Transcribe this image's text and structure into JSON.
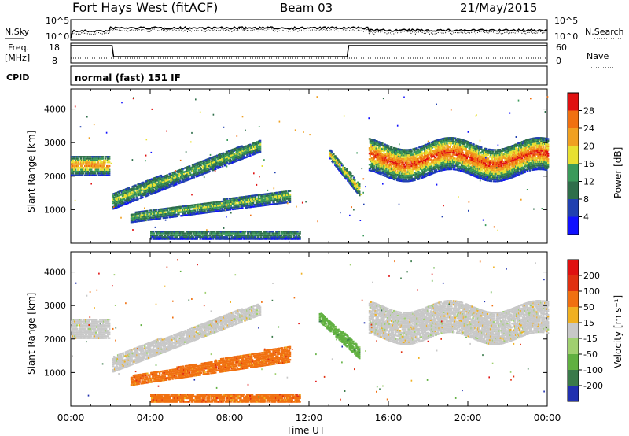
{
  "header": {
    "radar": "Fort Hays West (fitACF)",
    "beam": "Beam 03",
    "date": "21/May/2015"
  },
  "status_panel": {
    "left_top": "N.Sky",
    "left_mid_1": "Freq.",
    "left_mid_2": "[MHz]",
    "left_bottom": "CPID",
    "right_top": "N.Search",
    "right_mid": "Nave",
    "nsky_ticks": [
      "10^5",
      "10^0"
    ],
    "freq_ticks": [
      "18",
      "8"
    ],
    "nave_ticks": [
      "60",
      "0"
    ],
    "cpid_text": "normal (fast) 151 IF"
  },
  "chart_data": [
    {
      "type": "heatmap",
      "id": "power",
      "ylabel": "Slant Range [km]",
      "ylim": [
        0,
        4600
      ],
      "yticks": [
        "1000",
        "2000",
        "3000",
        "4000"
      ],
      "xlim_hours": [
        0,
        24
      ],
      "colorbar": {
        "label": "Power [dB]",
        "tick_labels": [
          "4",
          "8",
          "12",
          "16",
          "20",
          "24",
          "28"
        ],
        "colors": [
          "#1010ff",
          "#2040b0",
          "#2e6e4a",
          "#3a9a5a",
          "#e8e030",
          "#f0a020",
          "#f07010",
          "#e01010"
        ]
      },
      "echo_regions": [
        {
          "name": "early patch",
          "t": [
            0.0,
            1.9
          ],
          "range": [
            2000,
            2600
          ],
          "level": 5
        },
        {
          "name": "rising band",
          "t": [
            2.1,
            9.5
          ],
          "range_start": [
            1000,
            1500
          ],
          "range_end": [
            2700,
            3100
          ],
          "level": 3
        },
        {
          "name": "lower band",
          "t": [
            3.0,
            11.0
          ],
          "range_start": [
            600,
            900
          ],
          "range_end": [
            1200,
            1600
          ],
          "level": 3
        },
        {
          "name": "near range",
          "t": [
            4.0,
            11.5
          ],
          "range": [
            100,
            400
          ],
          "level": 2
        },
        {
          "name": "dusk streak",
          "t": [
            13.0,
            14.5
          ],
          "range_start": [
            2500,
            2800
          ],
          "range_end": [
            1400,
            1800
          ],
          "level": 4
        },
        {
          "name": "afternoon",
          "t": [
            15.0,
            24.0
          ],
          "range": [
            2000,
            3000
          ],
          "level": 6
        }
      ]
    },
    {
      "type": "heatmap",
      "id": "velocity",
      "ylabel": "Slant Range [km]",
      "ylim": [
        0,
        4600
      ],
      "yticks": [
        "1000",
        "2000",
        "3000",
        "4000"
      ],
      "xlim_hours": [
        0,
        24
      ],
      "xlabel": "Time UT",
      "xticks": [
        "00:00",
        "04:00",
        "08:00",
        "12:00",
        "16:00",
        "20:00",
        "00:00"
      ],
      "colorbar": {
        "label": "Velocity [m s⁻¹]",
        "tick_labels": [
          "200",
          "100",
          "50",
          "15",
          "-15",
          "-50",
          "-100",
          "-200"
        ],
        "colors": [
          "#2030b0",
          "#3a7a4a",
          "#60b040",
          "#a0d070",
          "#c8c8c8",
          "#f0b020",
          "#f07010",
          "#e03010",
          "#e01010"
        ]
      },
      "echo_regions": [
        {
          "name": "early patch",
          "t": [
            0.0,
            1.9
          ],
          "range": [
            2000,
            2600
          ],
          "color_index": 4
        },
        {
          "name": "rising band",
          "t": [
            2.1,
            9.5
          ],
          "range_start": [
            1000,
            1500
          ],
          "range_end": [
            2700,
            3100
          ],
          "color_index": 4
        },
        {
          "name": "lower band",
          "t": [
            3.0,
            11.0
          ],
          "range_start": [
            600,
            900
          ],
          "range_end": [
            1300,
            1800
          ],
          "color_index": 6
        },
        {
          "name": "near range",
          "t": [
            4.0,
            11.5
          ],
          "range": [
            100,
            400
          ],
          "color_index": 6
        },
        {
          "name": "dusk streak",
          "t": [
            12.5,
            14.5
          ],
          "range_start": [
            2500,
            2800
          ],
          "range_end": [
            1400,
            1800
          ],
          "color_index": 2
        },
        {
          "name": "afternoon",
          "t": [
            15.0,
            24.0
          ],
          "range": [
            2000,
            3000
          ],
          "color_index": 4
        }
      ]
    }
  ]
}
